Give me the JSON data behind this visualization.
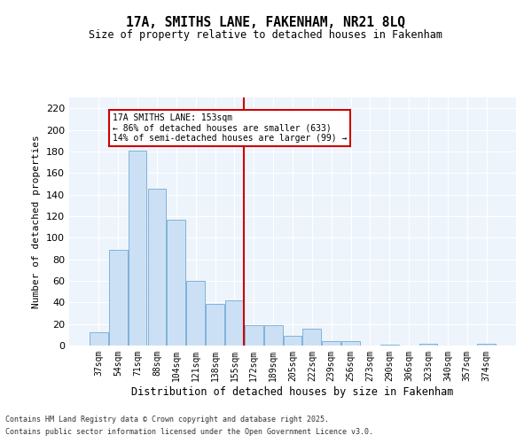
{
  "title": "17A, SMITHS LANE, FAKENHAM, NR21 8LQ",
  "subtitle": "Size of property relative to detached houses in Fakenham",
  "xlabel": "Distribution of detached houses by size in Fakenham",
  "ylabel": "Number of detached properties",
  "categories": [
    "37sqm",
    "54sqm",
    "71sqm",
    "88sqm",
    "104sqm",
    "121sqm",
    "138sqm",
    "155sqm",
    "172sqm",
    "189sqm",
    "205sqm",
    "222sqm",
    "239sqm",
    "256sqm",
    "273sqm",
    "290sqm",
    "306sqm",
    "323sqm",
    "340sqm",
    "357sqm",
    "374sqm"
  ],
  "values": [
    12,
    89,
    181,
    145,
    117,
    60,
    39,
    42,
    19,
    19,
    9,
    16,
    4,
    4,
    0,
    1,
    0,
    2,
    0,
    0,
    2
  ],
  "bar_color": "#cce0f5",
  "bar_edge_color": "#7fb3d9",
  "ylim": [
    0,
    230
  ],
  "yticks": [
    0,
    20,
    40,
    60,
    80,
    100,
    120,
    140,
    160,
    180,
    200,
    220
  ],
  "vline_x": 7.5,
  "vline_color": "#cc0000",
  "annotation_title": "17A SMITHS LANE: 153sqm",
  "annotation_line1": "← 86% of detached houses are smaller (633)",
  "annotation_line2": "14% of semi-detached houses are larger (99) →",
  "annotation_box_color": "#cc0000",
  "bg_color": "#eef4fb",
  "footer_line1": "Contains HM Land Registry data © Crown copyright and database right 2025.",
  "footer_line2": "Contains public sector information licensed under the Open Government Licence v3.0."
}
